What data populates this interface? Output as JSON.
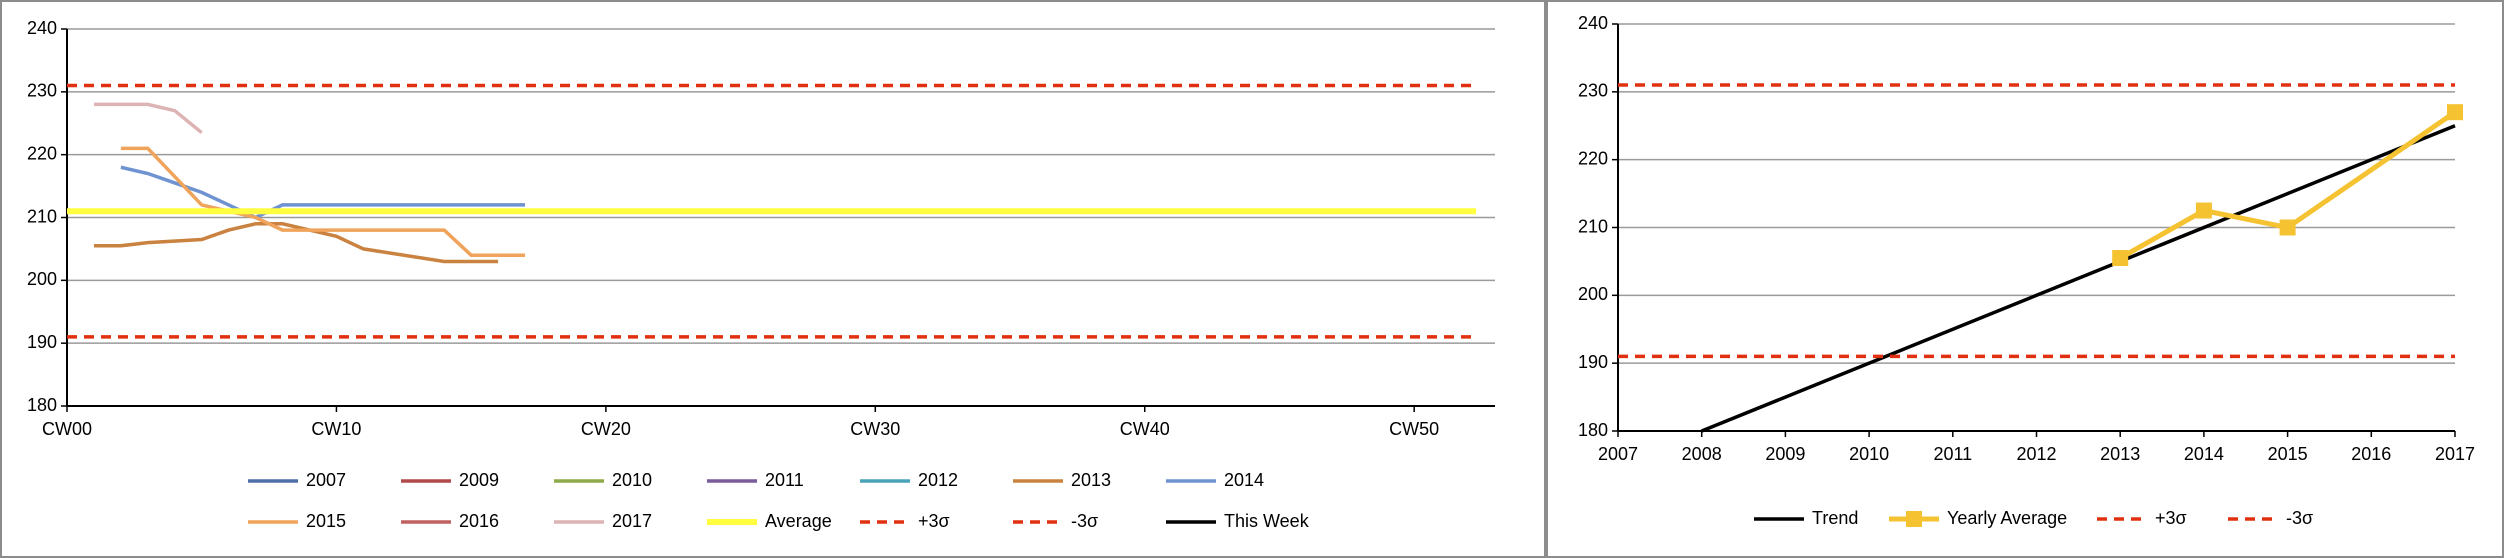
{
  "chart_data": [
    {
      "type": "line",
      "xlim": [
        0,
        53
      ],
      "ylim": [
        180,
        240
      ],
      "xticks": [
        {
          "value": 0,
          "label": "CW00"
        },
        {
          "value": 10,
          "label": "CW10"
        },
        {
          "value": 20,
          "label": "CW20"
        },
        {
          "value": 30,
          "label": "CW30"
        },
        {
          "value": 40,
          "label": "CW40"
        },
        {
          "value": 50,
          "label": "CW50"
        }
      ],
      "yticks": [
        180,
        190,
        200,
        210,
        220,
        230,
        240
      ],
      "grid": true,
      "legend": "bottom",
      "series": [
        {
          "name": "2007",
          "color": "#4f6fa8",
          "x": [],
          "values": []
        },
        {
          "name": "2009",
          "color": "#b04a4a",
          "x": [],
          "values": []
        },
        {
          "name": "2010",
          "color": "#8faa4a",
          "x": [],
          "values": []
        },
        {
          "name": "2011",
          "color": "#7a5c9c",
          "x": [],
          "values": []
        },
        {
          "name": "2012",
          "color": "#4aa3b8",
          "x": [],
          "values": []
        },
        {
          "name": "2013",
          "color": "#c9823f",
          "x": [
            1,
            2,
            3,
            5,
            6,
            7,
            8,
            10,
            11,
            14,
            16
          ],
          "values": [
            205.5,
            205.5,
            206,
            206.5,
            208,
            209,
            209,
            207,
            205,
            203,
            203
          ]
        },
        {
          "name": "2014",
          "color": "#6f93d0",
          "x": [
            2,
            3,
            4,
            5,
            6,
            7,
            8,
            17
          ],
          "values": [
            218,
            217,
            215.5,
            214,
            212,
            210,
            212,
            212
          ]
        },
        {
          "name": "2015",
          "color": "#f0a35a",
          "x": [
            2,
            3,
            5,
            7,
            8,
            14,
            15,
            17
          ],
          "values": [
            221,
            221,
            212,
            210,
            208,
            208,
            204,
            204
          ]
        },
        {
          "name": "2016",
          "color": "#c06060",
          "x": [],
          "values": []
        },
        {
          "name": "2017",
          "color": "#dcb4b4",
          "x": [
            1,
            3,
            4,
            5
          ],
          "values": [
            228,
            228,
            227,
            223.5
          ]
        },
        {
          "name": "Average",
          "color": "#ffff40",
          "x": [
            0,
            52.3
          ],
          "values": [
            211,
            211
          ],
          "width": 6
        },
        {
          "name": "+3σ",
          "color": "#e03010",
          "x": [
            0,
            52.3
          ],
          "values": [
            231,
            231
          ],
          "style": "dashed"
        },
        {
          "name": "-3σ",
          "color": "#e03010",
          "x": [
            0,
            52.3
          ],
          "values": [
            191,
            191
          ],
          "style": "dashed"
        },
        {
          "name": "This Week",
          "color": "#000000",
          "x": [],
          "values": []
        }
      ]
    },
    {
      "type": "line",
      "xlim": [
        2007,
        2017
      ],
      "ylim": [
        180,
        240
      ],
      "xticks": [
        2007,
        2008,
        2009,
        2010,
        2011,
        2012,
        2013,
        2014,
        2015,
        2016,
        2017
      ],
      "yticks": [
        180,
        190,
        200,
        210,
        220,
        230,
        240
      ],
      "grid": true,
      "legend": "bottom",
      "series": [
        {
          "name": "Trend",
          "color": "#000000",
          "x": [
            2008,
            2017
          ],
          "values": [
            180,
            225
          ]
        },
        {
          "name": "Yearly Average",
          "color": "#f5c232",
          "x": [
            2013,
            2014,
            2015,
            2017
          ],
          "values": [
            205.5,
            212.5,
            210,
            227
          ],
          "marker": "square",
          "width": 5
        },
        {
          "name": "+3σ",
          "color": "#e03010",
          "x": [
            2007,
            2017
          ],
          "values": [
            231,
            231
          ],
          "style": "dashed"
        },
        {
          "name": "-3σ",
          "color": "#e03010",
          "x": [
            2007,
            2017
          ],
          "values": [
            191,
            191
          ],
          "style": "dashed"
        }
      ]
    }
  ]
}
